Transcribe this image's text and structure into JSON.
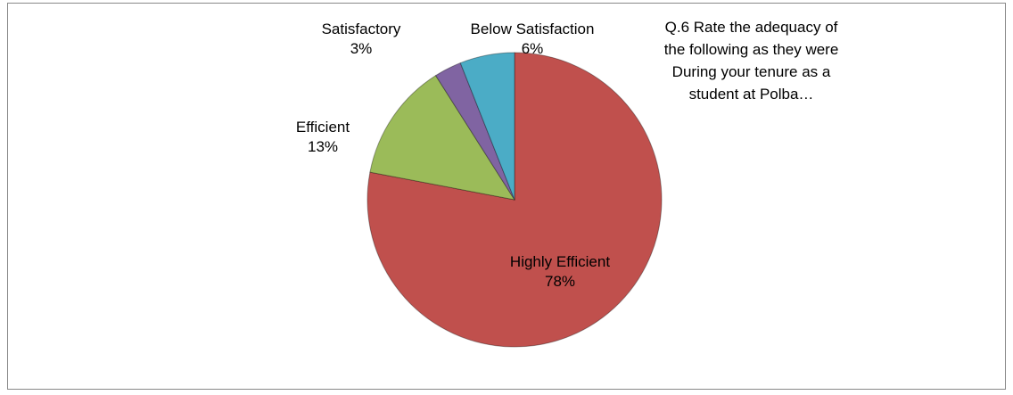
{
  "chart_data": {
    "type": "pie",
    "title": "Q.6 Rate the adequacy of the following as they were During your tenure as a student at Polba…",
    "categories": [
      "Highly Efficient",
      "Efficient",
      "Satisfactory",
      "Below Satisfaction"
    ],
    "values": [
      78,
      13,
      3,
      6
    ],
    "value_labels": [
      "78%",
      "13%",
      "3%",
      "6%"
    ],
    "colors": [
      "#c0504d",
      "#9bbb59",
      "#8064a2",
      "#4bacc6"
    ]
  }
}
